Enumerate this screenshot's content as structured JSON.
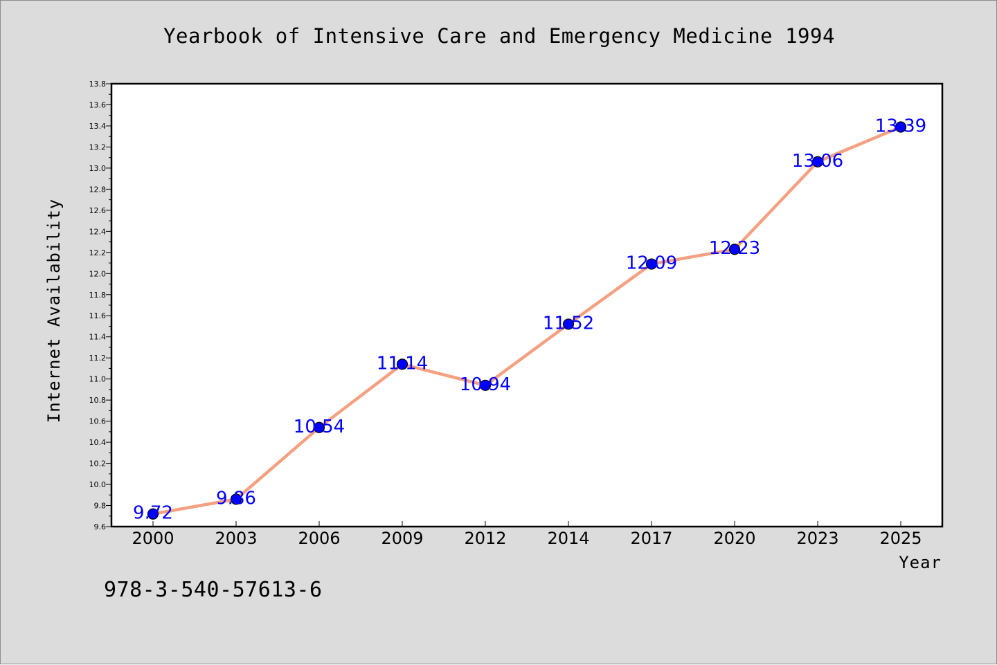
{
  "chart_data": {
    "type": "line",
    "title": "Yearbook of Intensive Care and Emergency Medicine 1994",
    "xlabel": "Year",
    "ylabel": "Internet Availability",
    "categories": [
      "2000",
      "2003",
      "2006",
      "2009",
      "2012",
      "2014",
      "2017",
      "2020",
      "2023",
      "2025"
    ],
    "values": [
      9.72,
      9.86,
      10.54,
      11.14,
      10.94,
      11.52,
      12.09,
      12.23,
      13.06,
      13.39
    ],
    "data_labels": [
      "9.72",
      "9.86",
      "10.54",
      "11.14",
      "10.94",
      "11.52",
      "12.09",
      "12.23",
      "13.06",
      "13.39"
    ],
    "ylim": [
      9.6,
      13.8
    ],
    "yticks": [
      "9.6",
      "9.8",
      "10.0",
      "10.2",
      "10.4",
      "10.6",
      "10.8",
      "11.0",
      "11.2",
      "11.4",
      "11.6",
      "11.8",
      "12.0",
      "12.2",
      "12.4",
      "12.6",
      "12.8",
      "13.0",
      "13.2",
      "13.4",
      "13.6",
      "13.8"
    ],
    "grid": false,
    "legend": "none",
    "line_color": "#f4a081",
    "marker_color": "#0000ff",
    "label_color": "#0000ff",
    "background_color": "#dcdcdc",
    "plot_background": "#ffffff"
  },
  "footer": {
    "text": "978-3-540-57613-6"
  }
}
